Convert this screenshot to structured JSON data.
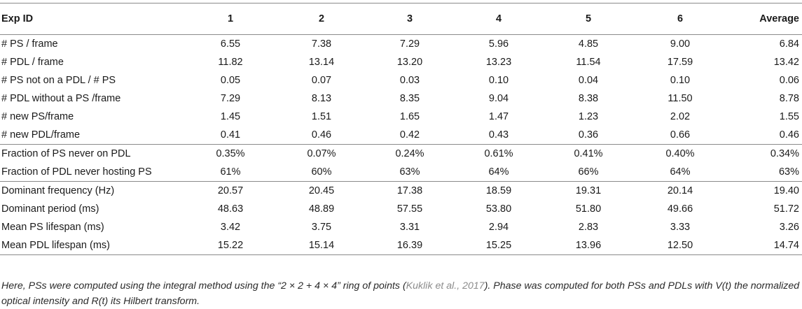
{
  "table": {
    "headers": [
      "Exp ID",
      "1",
      "2",
      "3",
      "4",
      "5",
      "6",
      "Average"
    ],
    "rows": [
      {
        "label": "# PS / frame",
        "values": [
          "6.55",
          "7.38",
          "7.29",
          "5.96",
          "4.85",
          "9.00",
          "6.84"
        ]
      },
      {
        "label": "# PDL / frame",
        "values": [
          "11.82",
          "13.14",
          "13.20",
          "13.23",
          "11.54",
          "17.59",
          "13.42"
        ]
      },
      {
        "label": "# PS not on a PDL / # PS",
        "values": [
          "0.05",
          "0.07",
          "0.03",
          "0.10",
          "0.04",
          "0.10",
          "0.06"
        ]
      },
      {
        "label": "# PDL without a PS /frame",
        "values": [
          "7.29",
          "8.13",
          "8.35",
          "9.04",
          "8.38",
          "11.50",
          "8.78"
        ]
      },
      {
        "label": "# new PS/frame",
        "values": [
          "1.45",
          "1.51",
          "1.65",
          "1.47",
          "1.23",
          "2.02",
          "1.55"
        ]
      },
      {
        "label": "# new PDL/frame",
        "values": [
          "0.41",
          "0.46",
          "0.42",
          "0.43",
          "0.36",
          "0.66",
          "0.46"
        ]
      },
      {
        "label": "Fraction of PS never on PDL",
        "values": [
          "0.35%",
          "0.07%",
          "0.24%",
          "0.61%",
          "0.41%",
          "0.40%",
          "0.34%"
        ]
      },
      {
        "label": "Fraction of PDL never hosting PS",
        "values": [
          "61%",
          "60%",
          "63%",
          "64%",
          "66%",
          "64%",
          "63%"
        ]
      },
      {
        "label": "Dominant frequency (Hz)",
        "values": [
          "20.57",
          "20.45",
          "17.38",
          "18.59",
          "19.31",
          "20.14",
          "19.40"
        ]
      },
      {
        "label": "Dominant period (ms)",
        "values": [
          "48.63",
          "48.89",
          "57.55",
          "53.80",
          "51.80",
          "49.66",
          "51.72"
        ]
      },
      {
        "label": "Mean PS lifespan (ms)",
        "values": [
          "3.42",
          "3.75",
          "3.31",
          "2.94",
          "2.83",
          "3.33",
          "3.26"
        ]
      },
      {
        "label": "Mean PDL lifespan (ms)",
        "values": [
          "15.22",
          "15.14",
          "16.39",
          "15.25",
          "13.96",
          "12.50",
          "14.74"
        ]
      }
    ]
  },
  "note": {
    "part1": "Here, PSs were computed using the integral method using the “2 × 2 + 4 × 4” ring of points (",
    "citation": "Kuklik et al., 2017",
    "part2": "). Phase was computed for both PSs and PDLs with V(t) the normalized optical intensity and R(t) its Hilbert transform."
  }
}
